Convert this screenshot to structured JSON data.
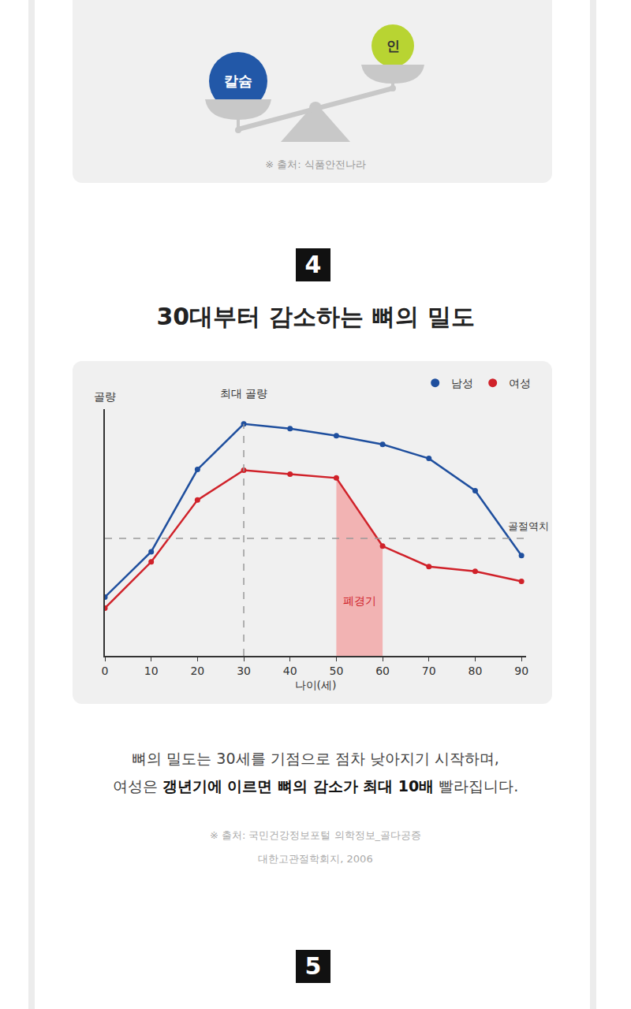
{
  "scale": {
    "left": "칼슘",
    "right": "인",
    "source": "※ 출처: 식품안전나라"
  },
  "section": {
    "number": "4",
    "title": "30대부터 감소하는 뼈의 밀도"
  },
  "chart_data": {
    "type": "line",
    "x": [
      0,
      10,
      20,
      30,
      40,
      50,
      60,
      70,
      80,
      90
    ],
    "series": [
      {
        "name": "남성",
        "color": "#1f4f9e",
        "marker": "circle",
        "values": [
          25,
          44.3,
          79.3,
          98.7,
          96.7,
          93.7,
          90,
          84,
          70.3,
          42.7
        ]
      },
      {
        "name": "여성",
        "color": "#d0222a",
        "marker": "circle",
        "values": [
          20.3,
          40,
          66.3,
          79,
          77.3,
          75.7,
          46.7,
          38,
          36,
          31.7
        ],
        "shade": {
          "x": [
            50,
            60
          ],
          "label": "폐경기",
          "color": "#f2b3b3"
        }
      }
    ],
    "xlabel": "나이(세)",
    "ylabel": "골량",
    "xlim": [
      0,
      91
    ],
    "xticks": [
      0,
      10,
      20,
      30,
      40,
      50,
      60,
      70,
      80,
      90
    ],
    "ylim": [
      0,
      105
    ],
    "yticks": [],
    "tick_labels": "x",
    "grid": false,
    "legend": "top right",
    "threshold": {
      "value": 50,
      "label": "골절역치",
      "line_style": "dashed"
    },
    "peak": {
      "x": 30,
      "label": "최대 골량",
      "line_style": "dashed"
    }
  },
  "caption": {
    "lines": [
      [
        {
          "text": "뼈의 밀도는 30세를 기점으로 점차 낮아지기 시작하며,"
        }
      ],
      [
        {
          "text": "여성은 "
        },
        {
          "text": "갱년기에 이르면 뼈의 감소가 최대 10배",
          "bold": true
        },
        {
          "text": " 빨라집니다."
        }
      ]
    ],
    "sources": [
      "※ 출처: 국민건강정보포털 의학정보_골다공증",
      "대한고관절학회지, 2006"
    ]
  },
  "next_section": {
    "number": "5"
  }
}
